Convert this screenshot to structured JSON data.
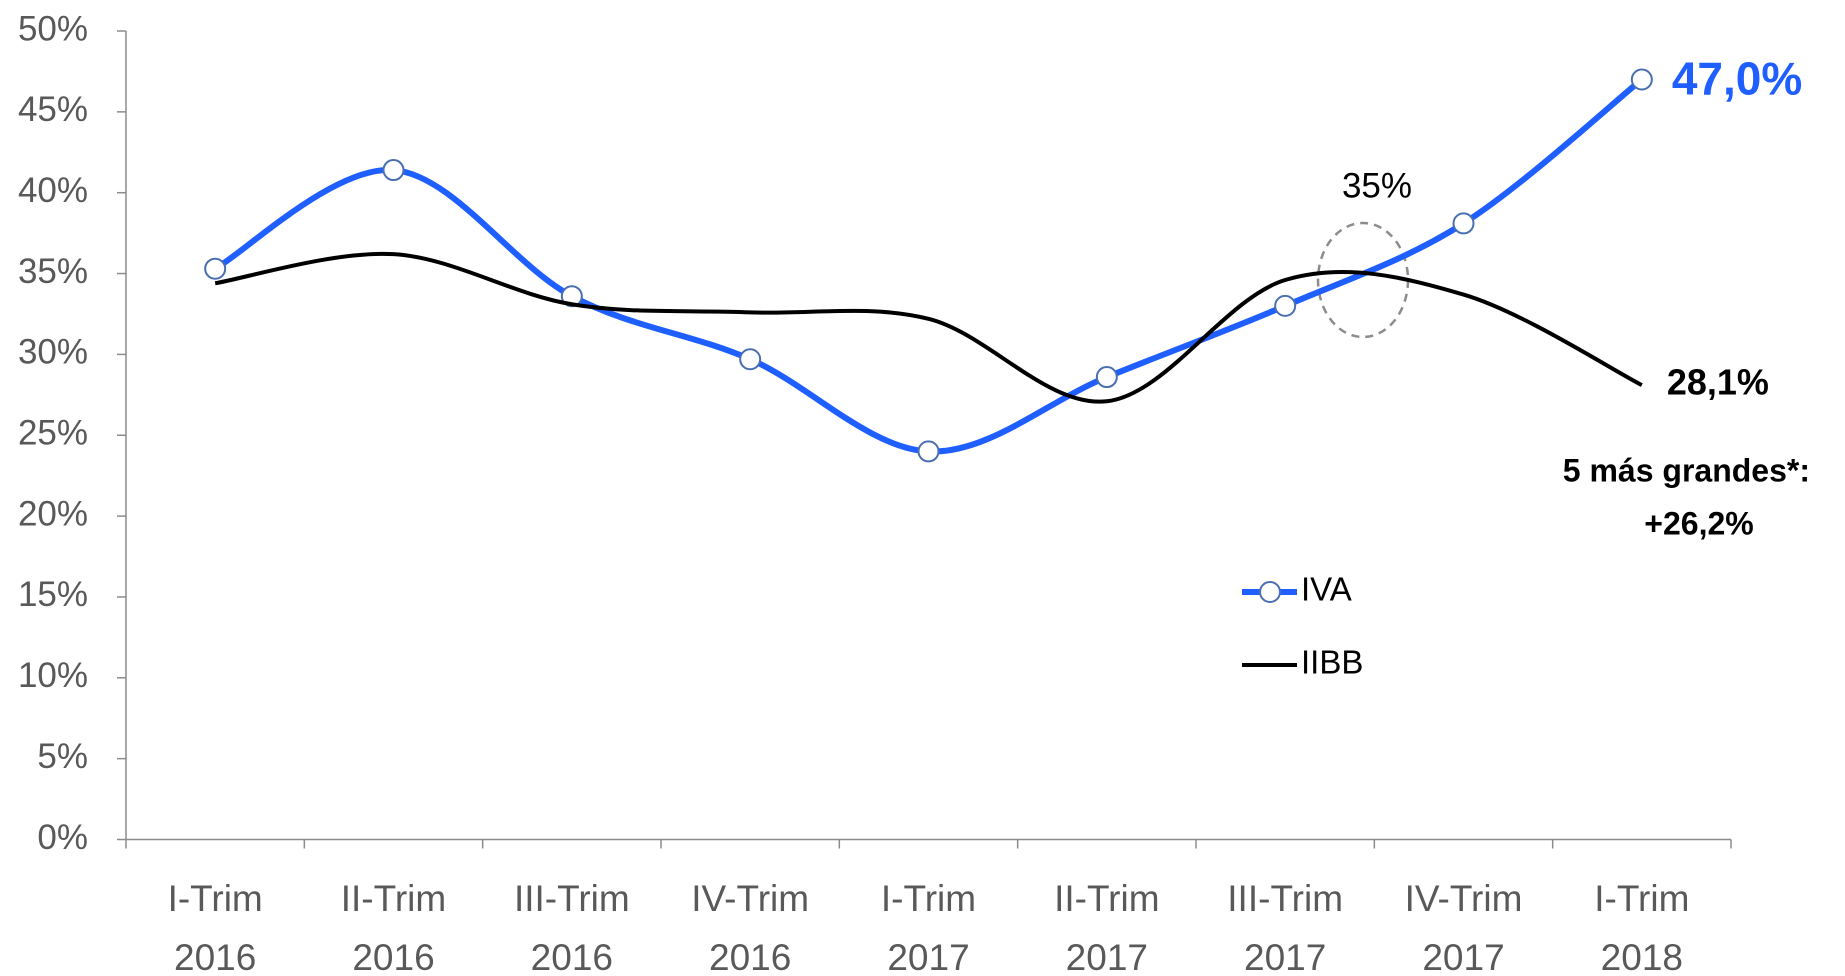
{
  "chart_data": {
    "type": "line",
    "categories": [
      "I-Trim 2016",
      "II-Trim 2016",
      "III-Trim 2016",
      "IV-Trim 2016",
      "I-Trim 2017",
      "II-Trim 2017",
      "III-Trim 2017",
      "IV-Trim 2017",
      "I-Trim 2018"
    ],
    "series": [
      {
        "name": "IVA",
        "color": "#1f5fff",
        "values": [
          35.3,
          41.4,
          33.6,
          29.7,
          24.0,
          28.6,
          33.0,
          38.1,
          47.0
        ],
        "value_labels": [
          null,
          null,
          null,
          null,
          null,
          null,
          null,
          null,
          "47,0%"
        ]
      },
      {
        "name": "IIBB",
        "color": "#000000",
        "values": [
          34.4,
          36.2,
          33.1,
          32.6,
          32.2,
          27.1,
          34.6,
          33.7,
          28.1
        ],
        "value_labels": [
          null,
          null,
          null,
          null,
          null,
          null,
          null,
          null,
          "28,1%"
        ]
      }
    ],
    "ylim": [
      0,
      50
    ],
    "yticks": [
      {
        "value": 0,
        "label": "0%"
      },
      {
        "value": 5,
        "label": "5%"
      },
      {
        "value": 10,
        "label": "10%"
      },
      {
        "value": 15,
        "label": "15%"
      },
      {
        "value": 20,
        "label": "20%"
      },
      {
        "value": 25,
        "label": "25%"
      },
      {
        "value": 30,
        "label": "30%"
      },
      {
        "value": 35,
        "label": "35%"
      },
      {
        "value": 40,
        "label": "40%"
      },
      {
        "value": 45,
        "label": "45%"
      },
      {
        "value": 50,
        "label": "50%"
      }
    ],
    "annotations": [
      "35%",
      "5 más grandes*:",
      "+26,2%"
    ],
    "grid": false
  }
}
